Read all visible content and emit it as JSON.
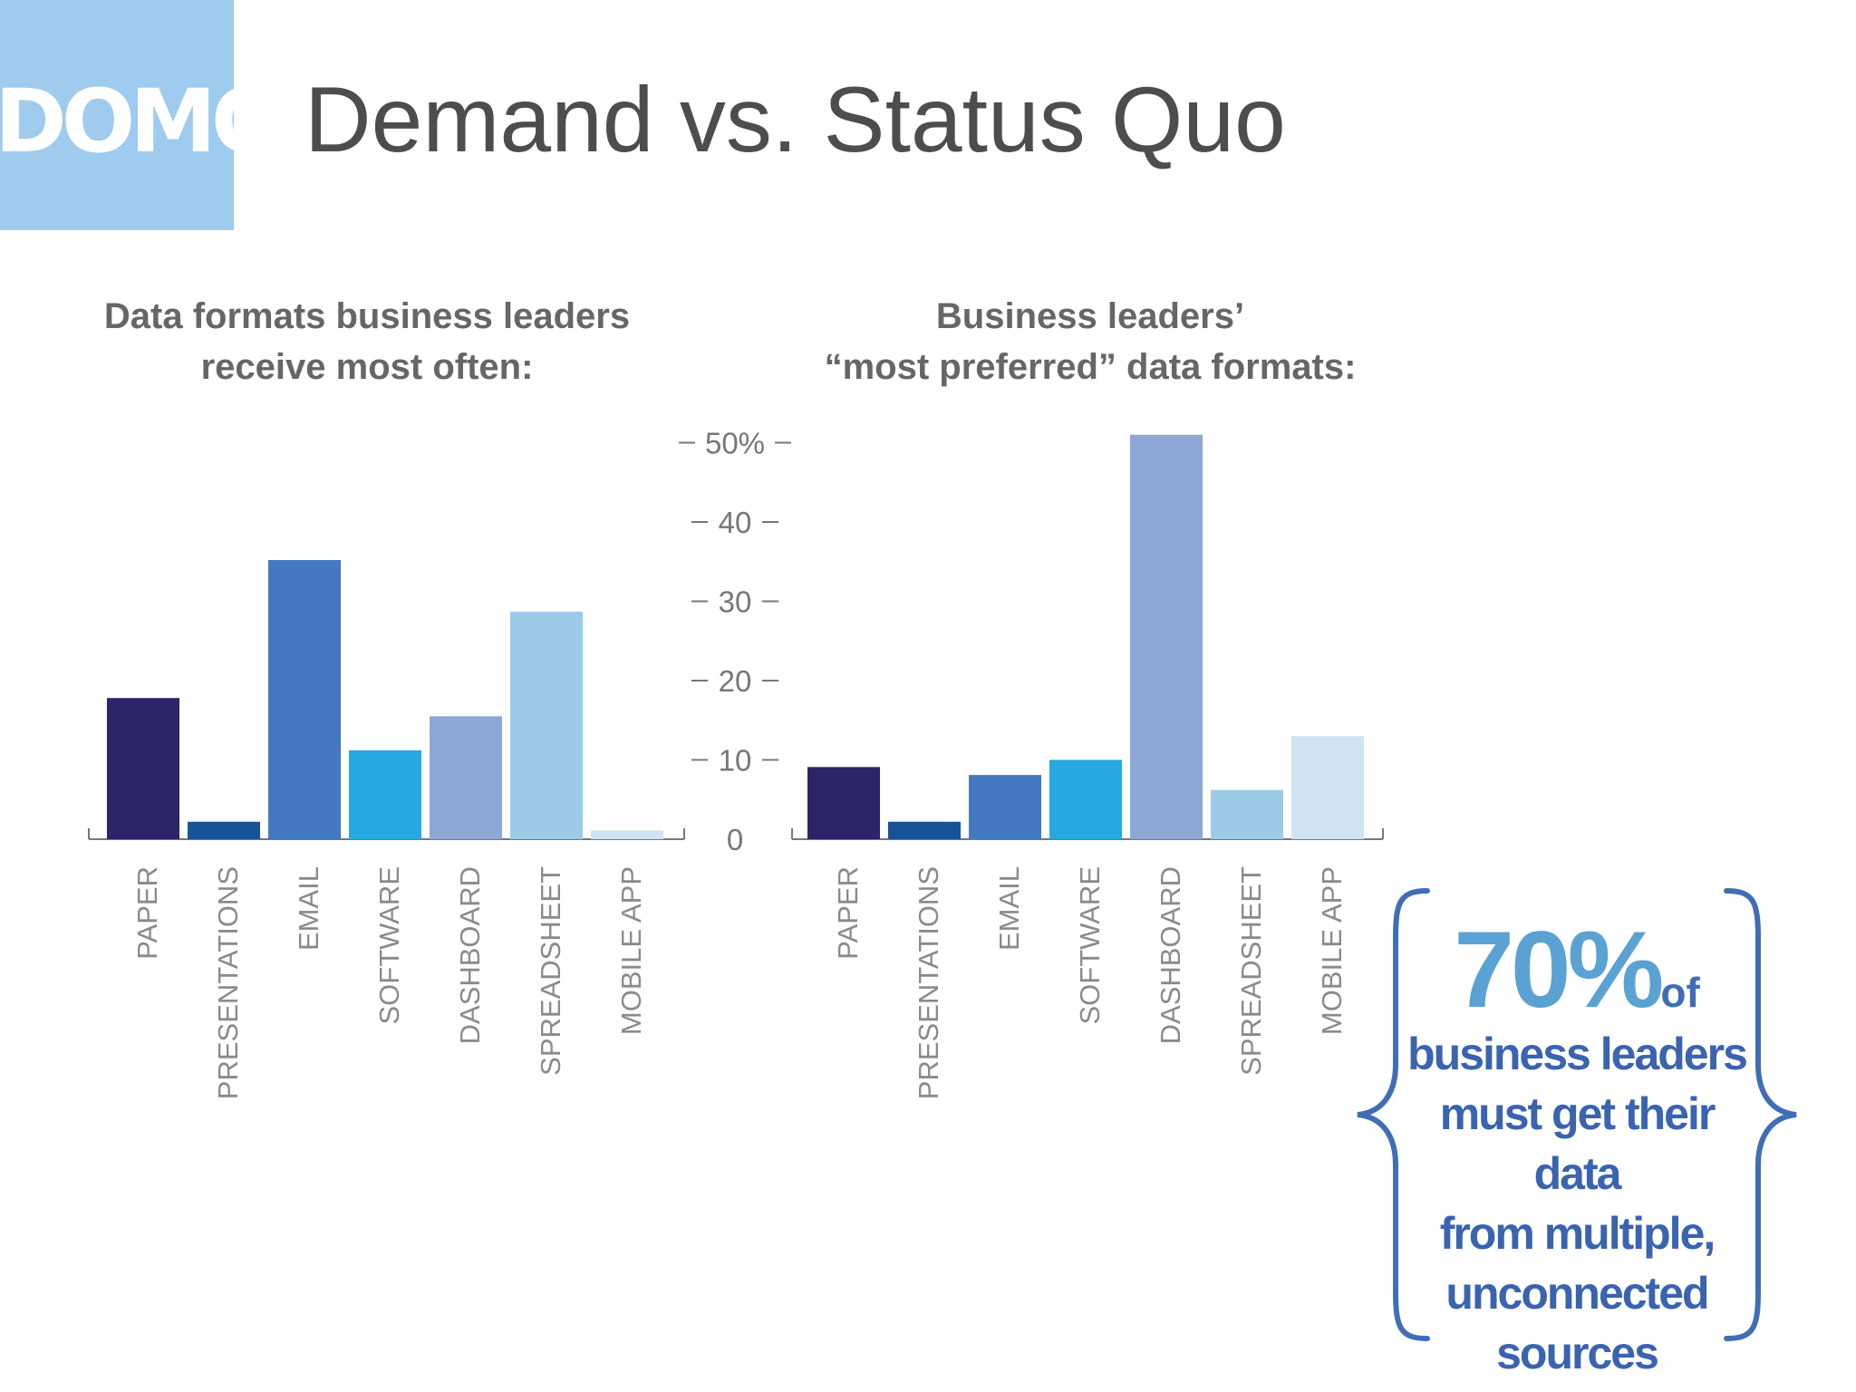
{
  "logo": {
    "text": "DOMO"
  },
  "slide": {
    "title": "Demand vs. Status Quo"
  },
  "colors": [
    "#2b2466",
    "#175396",
    "#4479c1",
    "#26a9e1",
    "#8da7d6",
    "#9ccbea",
    "#cfe3f3"
  ],
  "chart_data": [
    {
      "type": "bar",
      "title": "Data formats business leaders receive most often:",
      "title_lines": [
        "Data formats business leaders",
        "receive most often:"
      ],
      "categories": [
        "PAPER",
        "PRESENTATIONS",
        "EMAIL",
        "SOFTWARE",
        "DASHBOARD",
        "SPREADSHEET",
        "MOBILE APP"
      ],
      "values": [
        17.8,
        2.2,
        35.2,
        11.2,
        15.5,
        28.7,
        1.1
      ],
      "ylim": [
        0,
        52
      ]
    },
    {
      "type": "bar",
      "title": "Business leaders' \"most preferred\" data formats:",
      "title_lines": [
        "Business leaders’",
        "“most preferred” data formats:"
      ],
      "categories": [
        "PAPER",
        "PRESENTATIONS",
        "EMAIL",
        "SOFTWARE",
        "DASHBOARD",
        "SPREADSHEET",
        "MOBILE APP"
      ],
      "values": [
        9.1,
        2.2,
        8.1,
        10.0,
        51.0,
        6.2,
        13.0
      ],
      "ylim": [
        0,
        52
      ],
      "yticks": [
        "50%",
        "40",
        "30",
        "20",
        "10",
        "0"
      ],
      "ytick_values": [
        50,
        40,
        30,
        20,
        10,
        0
      ]
    }
  ],
  "callout": {
    "percent": "70%",
    "of": "of",
    "lines": [
      "business leaders",
      "must get their data",
      "from multiple,",
      "unconnected",
      "sources"
    ]
  }
}
